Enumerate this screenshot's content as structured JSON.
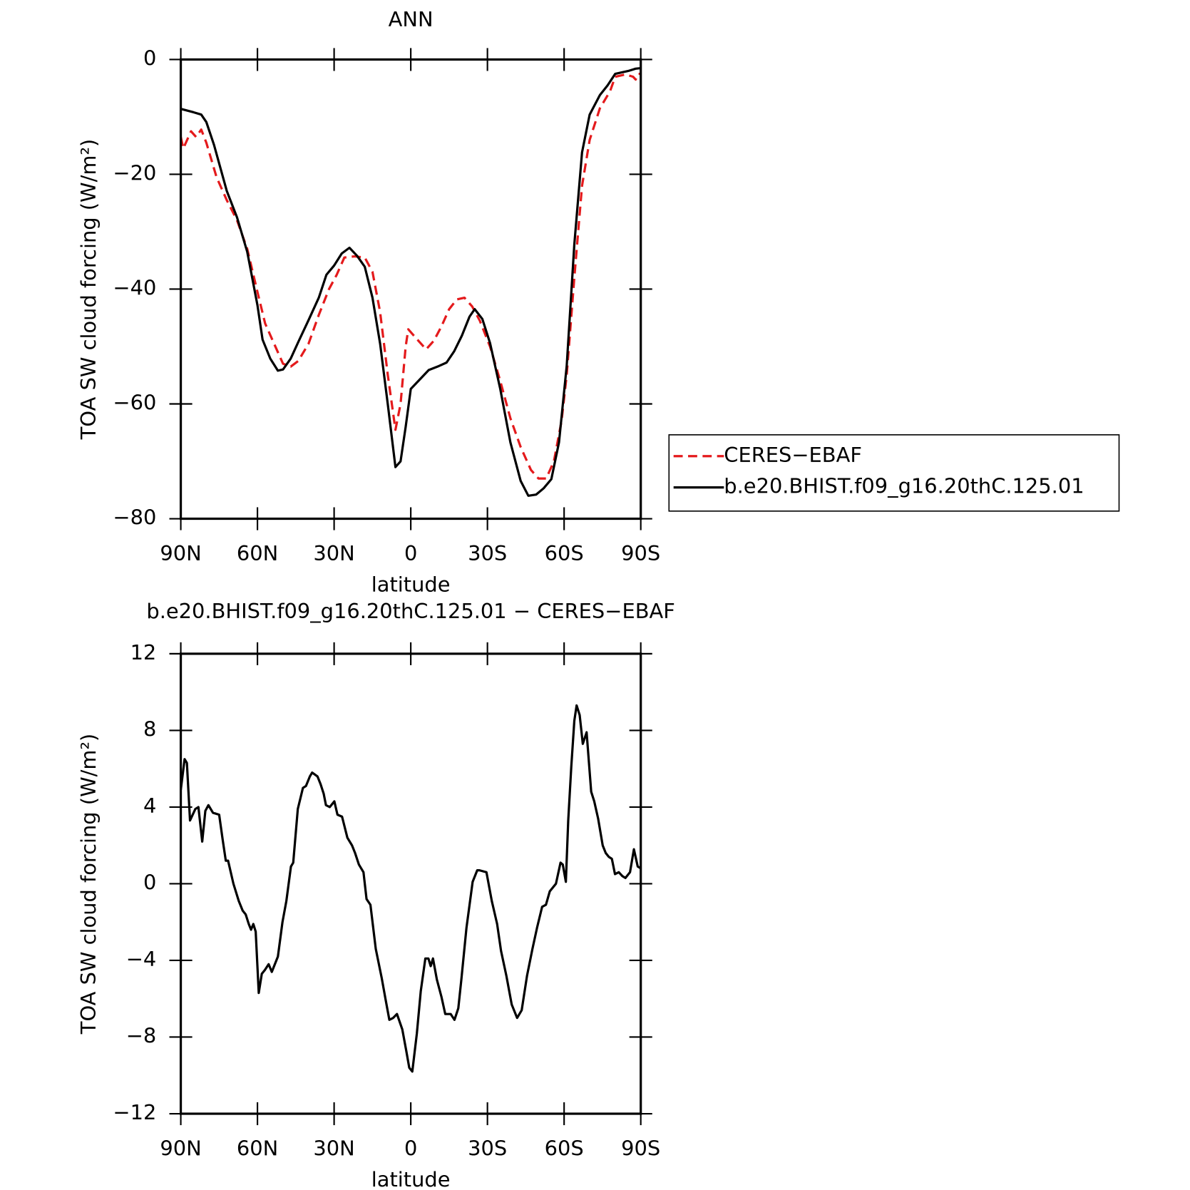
{
  "chart_data": [
    {
      "type": "line",
      "title": "ANN",
      "x_label": "latitude",
      "y_label": "TOA SW cloud forcing (W/m²)",
      "xlim": [
        90,
        -90
      ],
      "ylim": [
        -80,
        0
      ],
      "xticks": [
        {
          "value": 90,
          "label": "90N"
        },
        {
          "value": 60,
          "label": "60N"
        },
        {
          "value": 30,
          "label": "30N"
        },
        0,
        {
          "value": -30,
          "label": "30S"
        },
        {
          "value": -60,
          "label": "60S"
        },
        {
          "value": -90,
          "label": "90S"
        }
      ],
      "yticks": [
        0,
        {
          "value": -20,
          "label": "−20"
        },
        {
          "value": -40,
          "label": "−40"
        },
        {
          "value": -60,
          "label": "−60"
        },
        {
          "value": -80,
          "label": "−80"
        }
      ],
      "legend": "right",
      "series": [
        {
          "name": "CERES−EBAF",
          "color": "#e41a1c",
          "line_style": "dashed",
          "x": [
            90,
            89,
            86,
            84,
            82,
            80,
            76,
            72,
            68,
            64,
            60,
            57,
            54,
            50,
            47,
            44,
            40,
            36,
            32,
            29,
            26,
            22,
            18,
            15,
            12,
            9,
            6,
            4,
            2,
            1,
            -3,
            -6,
            -9,
            -12,
            -15,
            -18,
            -21,
            -24,
            -27,
            -31,
            -35,
            -39,
            -43,
            -47,
            -50,
            -53,
            -56,
            -59,
            -61,
            -64,
            -67,
            -70,
            -74,
            -78,
            -80,
            -84,
            -87,
            -88,
            -89,
            -90
          ],
          "values": [
            -13.5,
            -15.5,
            -12.5,
            -13.5,
            -12.2,
            -14.5,
            -20.5,
            -24.5,
            -28,
            -33,
            -40.5,
            -46,
            -49,
            -53,
            -53.5,
            -52.5,
            -49.5,
            -44.5,
            -40,
            -37.5,
            -34.5,
            -34.3,
            -34.5,
            -37,
            -44,
            -55,
            -64.5,
            -60,
            -50,
            -47,
            -49,
            -50.5,
            -49,
            -46.5,
            -43.5,
            -41.8,
            -41.5,
            -43,
            -45.5,
            -50,
            -56,
            -62.5,
            -67.5,
            -71.5,
            -73,
            -73,
            -70,
            -63,
            -55,
            -38,
            -22,
            -14,
            -8.5,
            -5.5,
            -3,
            -2.6,
            -3,
            -3.5,
            -2.5,
            -2.5
          ]
        },
        {
          "name": "b.e20.BHIST.f09_g16.20thC.125.01",
          "color": "#000000",
          "line_style": "solid",
          "x": [
            90,
            85,
            82,
            80,
            77,
            72,
            68,
            64,
            60,
            58,
            55,
            52,
            50,
            47,
            44,
            40,
            36,
            33,
            30,
            27,
            24,
            21,
            18,
            15,
            12,
            9,
            6,
            4,
            2,
            0,
            -3,
            -7,
            -11,
            -14,
            -17,
            -20,
            -23,
            -25,
            -28,
            -31,
            -35,
            -39,
            -43,
            -46,
            -49,
            -52,
            -55,
            -58,
            -61,
            -64,
            -67,
            -70,
            -74,
            -77,
            -80,
            -85,
            -88,
            -90
          ],
          "values": [
            -8.6,
            -9.2,
            -9.6,
            -10.9,
            -14.9,
            -22.9,
            -27.5,
            -33.5,
            -42.8,
            -48.8,
            -52.1,
            -54.2,
            -54,
            -52.1,
            -49.2,
            -45.4,
            -41.5,
            -37.5,
            -35.9,
            -33.8,
            -32.8,
            -34.2,
            -36.1,
            -41.5,
            -49.5,
            -60.1,
            -71,
            -70,
            -64,
            -57.4,
            -56,
            -54.1,
            -53.4,
            -52.8,
            -50.8,
            -48.1,
            -44.8,
            -43.5,
            -45.2,
            -49.4,
            -57.4,
            -66.7,
            -73.4,
            -76,
            -75.8,
            -74.7,
            -73.1,
            -66.7,
            -53.4,
            -32.2,
            -16.2,
            -9.6,
            -6.2,
            -4.5,
            -2.5,
            -2,
            -1.6,
            -1.5
          ]
        }
      ]
    },
    {
      "type": "line",
      "title": "b.e20.BHIST.f09_g16.20thC.125.01 − CERES−EBAF",
      "x_label": "latitude",
      "y_label": "TOA SW cloud forcing (W/m²)",
      "xlim": [
        90,
        -90
      ],
      "ylim": [
        -12,
        12
      ],
      "xticks": [
        {
          "value": 90,
          "label": "90N"
        },
        {
          "value": 60,
          "label": "60N"
        },
        {
          "value": 30,
          "label": "30N"
        },
        0,
        {
          "value": -30,
          "label": "30S"
        },
        {
          "value": -60,
          "label": "60S"
        },
        {
          "value": -90,
          "label": "90S"
        }
      ],
      "yticks": [
        12,
        8,
        4,
        0,
        {
          "value": -4,
          "label": "−4"
        },
        {
          "value": -8,
          "label": "−8"
        },
        {
          "value": -12,
          "label": "−12"
        }
      ],
      "color": "#000000",
      "x": [
        90,
        88.5,
        87.6,
        86.4,
        84.3,
        83.1,
        81.6,
        80.4,
        79.2,
        77.4,
        75,
        73.6,
        72.4,
        71.5,
        69.4,
        67.3,
        65.8,
        64.6,
        63.4,
        62.5,
        61.6,
        60.7,
        59.5,
        58.3,
        57.1,
        55.6,
        54.4,
        52,
        50.2,
        48.7,
        46.9,
        46,
        44.2,
        42.2,
        41,
        39.5,
        38.6,
        36.5,
        35.3,
        34.1,
        33.2,
        31.7,
        29.9,
        28.7,
        26.9,
        24.8,
        23,
        21.8,
        20.3,
        18.5,
        17.3,
        15.8,
        13.7,
        11.4,
        9.9,
        8.4,
        6.9,
        5.4,
        3.3,
        1.8,
        0.6,
        -0.6,
        -2.4,
        -3.9,
        -5.7,
        -6.9,
        -7.8,
        -8.7,
        -10.2,
        -12,
        -13.5,
        -15.6,
        -17.1,
        -18.6,
        -19.8,
        -21.8,
        -24.2,
        -26,
        -26.9,
        -29.6,
        -31.7,
        -33.8,
        -35.3,
        -37.4,
        -39.5,
        -41.6,
        -43.4,
        -45.5,
        -47.6,
        -49.4,
        -51.4,
        -52.9,
        -54.4,
        -56.8,
        -58.6,
        -59.5,
        -60.7,
        -61.6,
        -62.8,
        -64,
        -64.9,
        -66.1,
        -67.3,
        -68.8,
        -70.6,
        -71.8,
        -73.3,
        -75.1,
        -76.3,
        -77.5,
        -78.7,
        -79.9,
        -81.4,
        -82.8,
        -84,
        -85.8,
        -87.3,
        -88.8,
        -90
      ],
      "values": [
        4.9,
        6.5,
        6.3,
        3.3,
        3.9,
        4.0,
        2.2,
        3.8,
        4.1,
        3.7,
        3.6,
        2.3,
        1.2,
        1.2,
        0,
        -0.9,
        -1.4,
        -1.6,
        -2.1,
        -2.4,
        -2.1,
        -2.5,
        -5.7,
        -4.7,
        -4.5,
        -4.2,
        -4.6,
        -3.8,
        -2,
        -0.9,
        0.9,
        1.1,
        3.9,
        5.0,
        5.1,
        5.6,
        5.8,
        5.6,
        5.2,
        4.7,
        4.1,
        4.0,
        4.3,
        3.6,
        3.5,
        2.4,
        2.0,
        1.6,
        1.0,
        0.6,
        -0.8,
        -1.1,
        -3.4,
        -4.9,
        -6.0,
        -7.1,
        -7.0,
        -6.8,
        -7.6,
        -8.7,
        -9.6,
        -9.8,
        -7.8,
        -5.6,
        -3.9,
        -3.9,
        -4.3,
        -3.9,
        -5.0,
        -5.9,
        -6.8,
        -6.8,
        -7.1,
        -6.5,
        -5.0,
        -2.3,
        0.1,
        0.7,
        0.7,
        0.6,
        -0.9,
        -2.1,
        -3.5,
        -4.8,
        -6.3,
        -7.0,
        -6.6,
        -4.8,
        -3.4,
        -2.3,
        -1.2,
        -1.1,
        -0.4,
        0,
        1.1,
        1.0,
        0.1,
        3.3,
        6.1,
        8.5,
        9.3,
        8.8,
        7.3,
        7.9,
        4.8,
        4.3,
        3.4,
        2.0,
        1.6,
        1.4,
        1.3,
        0.5,
        0.6,
        0.4,
        0.3,
        0.6,
        1.8,
        0.9,
        0.8
      ]
    }
  ]
}
